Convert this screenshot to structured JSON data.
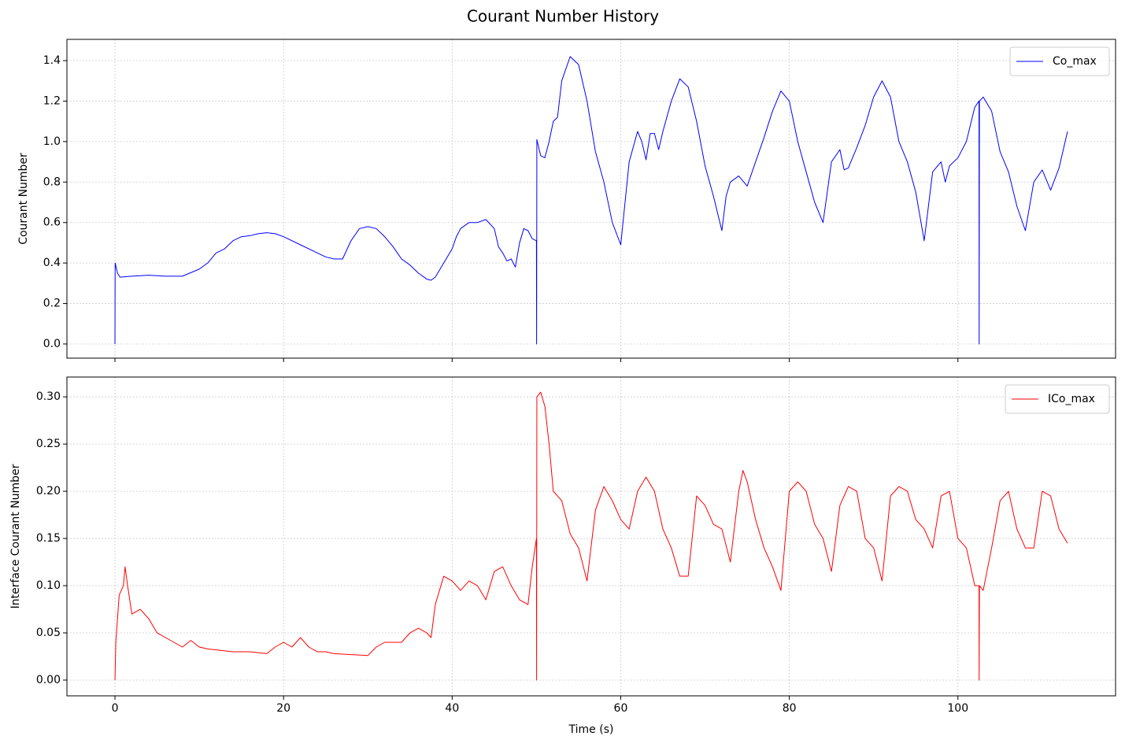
{
  "title": "Courant Number History",
  "chart_data": [
    {
      "type": "line",
      "ylabel": "Courant Number",
      "xlim": [
        -5.7,
        118.7
      ],
      "ylim": [
        -0.07,
        1.505
      ],
      "xticks": [
        0,
        20,
        40,
        60,
        80,
        100
      ],
      "show_xticklabels": false,
      "yticks": [
        {
          "value": 0,
          "label": "0.0"
        },
        0.2,
        0.4,
        0.6,
        0.8,
        {
          "value": 1,
          "label": "1.0"
        },
        1.2,
        1.4
      ],
      "grid": true,
      "legend": "upper right",
      "series": [
        {
          "name": "Co_max",
          "color": "#0000ff",
          "x": [
            0,
            0.02,
            0.3,
            0.6,
            2,
            4,
            6,
            8,
            10,
            11,
            12,
            13,
            14,
            15,
            16,
            17,
            18,
            19,
            20,
            22,
            24,
            25,
            26,
            27,
            28,
            29,
            30,
            31,
            32,
            33,
            34,
            35,
            36,
            37,
            37.5,
            38,
            39,
            40,
            40.5,
            41,
            42,
            43,
            44,
            45,
            45.5,
            46,
            46.5,
            47,
            47.5,
            48,
            48.5,
            49,
            49.5,
            50,
            50.02,
            50.05,
            50.5,
            51,
            51.5,
            52,
            52.5,
            53,
            54,
            55,
            56,
            57,
            58,
            59,
            60,
            61,
            62,
            62.5,
            63,
            63.5,
            64,
            64.5,
            65,
            66,
            67,
            68,
            69,
            70,
            71,
            72,
            72.5,
            73,
            74,
            75,
            76,
            77,
            78,
            79,
            80,
            81,
            82,
            83,
            84,
            85,
            86,
            86.5,
            87,
            88,
            89,
            90,
            91,
            92,
            93,
            94,
            95,
            96,
            97,
            98,
            98.5,
            99,
            100,
            101,
            102,
            102.5,
            102.52,
            102.55,
            103,
            104,
            105,
            106,
            107,
            108,
            109,
            110,
            111,
            112,
            113
          ],
          "values": [
            0,
            0.4,
            0.35,
            0.33,
            0.335,
            0.34,
            0.335,
            0.335,
            0.37,
            0.4,
            0.45,
            0.47,
            0.51,
            0.53,
            0.535,
            0.545,
            0.55,
            0.545,
            0.53,
            0.49,
            0.45,
            0.43,
            0.42,
            0.42,
            0.51,
            0.57,
            0.58,
            0.57,
            0.53,
            0.48,
            0.42,
            0.39,
            0.35,
            0.32,
            0.315,
            0.33,
            0.4,
            0.47,
            0.53,
            0.57,
            0.6,
            0.6,
            0.615,
            0.57,
            0.48,
            0.45,
            0.41,
            0.42,
            0.38,
            0.5,
            0.57,
            0.56,
            0.52,
            0.51,
            0,
            1.01,
            0.93,
            0.92,
            1.0,
            1.1,
            1.12,
            1.3,
            1.42,
            1.38,
            1.2,
            0.95,
            0.8,
            0.6,
            0.49,
            0.9,
            1.05,
            1.0,
            0.91,
            1.04,
            1.04,
            0.96,
            1.05,
            1.2,
            1.31,
            1.27,
            1.1,
            0.88,
            0.73,
            0.56,
            0.73,
            0.8,
            0.83,
            0.78,
            0.9,
            1.02,
            1.15,
            1.25,
            1.2,
            1.0,
            0.85,
            0.7,
            0.6,
            0.9,
            0.96,
            0.86,
            0.87,
            0.97,
            1.08,
            1.22,
            1.3,
            1.22,
            1.0,
            0.9,
            0.75,
            0.51,
            0.85,
            0.9,
            0.8,
            0.88,
            0.92,
            1.0,
            1.17,
            1.2,
            0,
            1.2,
            1.22,
            1.15,
            0.95,
            0.85,
            0.68,
            0.56,
            0.8,
            0.86,
            0.76,
            0.87,
            1.05
          ]
        }
      ]
    },
    {
      "type": "line",
      "xlabel": "Time (s)",
      "ylabel": "Interface Courant Number",
      "xlim": [
        -5.7,
        118.7
      ],
      "ylim": [
        -0.0167,
        0.321
      ],
      "xticks": [
        0,
        20,
        40,
        60,
        80,
        100
      ],
      "show_xticklabels": true,
      "yticks": [
        {
          "value": 0,
          "label": "0.00"
        },
        {
          "value": 0.05,
          "label": "0.05"
        },
        {
          "value": 0.1,
          "label": "0.10"
        },
        {
          "value": 0.15,
          "label": "0.15"
        },
        {
          "value": 0.2,
          "label": "0.20"
        },
        {
          "value": 0.25,
          "label": "0.25"
        },
        {
          "value": 0.3,
          "label": "0.30"
        }
      ],
      "grid": true,
      "legend": "upper right",
      "series": [
        {
          "name": "ICo_max",
          "color": "#ff0000",
          "x": [
            0,
            0.1,
            0.5,
            1,
            1.2,
            1.5,
            2,
            3,
            4,
            5,
            6,
            7,
            8,
            9,
            10,
            11,
            12,
            14,
            16,
            18,
            19,
            20,
            21,
            22,
            23,
            24,
            25,
            26,
            28,
            30,
            31,
            32,
            33,
            34,
            35,
            36,
            37,
            37.5,
            38,
            39,
            40,
            41,
            42,
            43,
            44,
            45,
            46,
            47,
            48,
            49,
            49.5,
            50,
            50.02,
            50.05,
            50.5,
            51,
            51.5,
            52,
            53,
            54,
            55,
            56,
            57,
            58,
            59,
            60,
            61,
            62,
            63,
            64,
            65,
            66,
            67,
            68,
            69,
            70,
            71,
            72,
            73,
            74,
            74.5,
            75,
            76,
            77,
            78,
            79,
            80,
            81,
            82,
            83,
            84,
            85,
            86,
            87,
            88,
            89,
            90,
            91,
            92,
            93,
            94,
            95,
            96,
            97,
            98,
            99,
            100,
            101,
            102,
            102.5,
            102.52,
            102.55,
            103,
            104,
            105,
            106,
            107,
            108,
            109,
            110,
            111,
            112,
            113
          ],
          "values": [
            0,
            0.04,
            0.09,
            0.1,
            0.12,
            0.1,
            0.07,
            0.075,
            0.065,
            0.05,
            0.045,
            0.04,
            0.035,
            0.042,
            0.035,
            0.033,
            0.032,
            0.03,
            0.03,
            0.028,
            0.035,
            0.04,
            0.035,
            0.045,
            0.035,
            0.03,
            0.03,
            0.028,
            0.027,
            0.026,
            0.035,
            0.04,
            0.04,
            0.04,
            0.05,
            0.055,
            0.05,
            0.045,
            0.08,
            0.11,
            0.105,
            0.095,
            0.105,
            0.1,
            0.085,
            0.115,
            0.12,
            0.1,
            0.085,
            0.08,
            0.12,
            0.15,
            0,
            0.3,
            0.305,
            0.29,
            0.25,
            0.2,
            0.19,
            0.155,
            0.14,
            0.105,
            0.18,
            0.205,
            0.19,
            0.17,
            0.16,
            0.2,
            0.215,
            0.2,
            0.16,
            0.14,
            0.11,
            0.11,
            0.195,
            0.185,
            0.165,
            0.16,
            0.125,
            0.2,
            0.222,
            0.21,
            0.17,
            0.14,
            0.12,
            0.095,
            0.2,
            0.21,
            0.2,
            0.165,
            0.15,
            0.115,
            0.185,
            0.205,
            0.2,
            0.15,
            0.14,
            0.105,
            0.195,
            0.205,
            0.2,
            0.17,
            0.16,
            0.14,
            0.195,
            0.2,
            0.15,
            0.14,
            0.1,
            0.1,
            0,
            0.1,
            0.095,
            0.14,
            0.19,
            0.2,
            0.16,
            0.14,
            0.14,
            0.2,
            0.195,
            0.16,
            0.145
          ]
        }
      ]
    }
  ]
}
